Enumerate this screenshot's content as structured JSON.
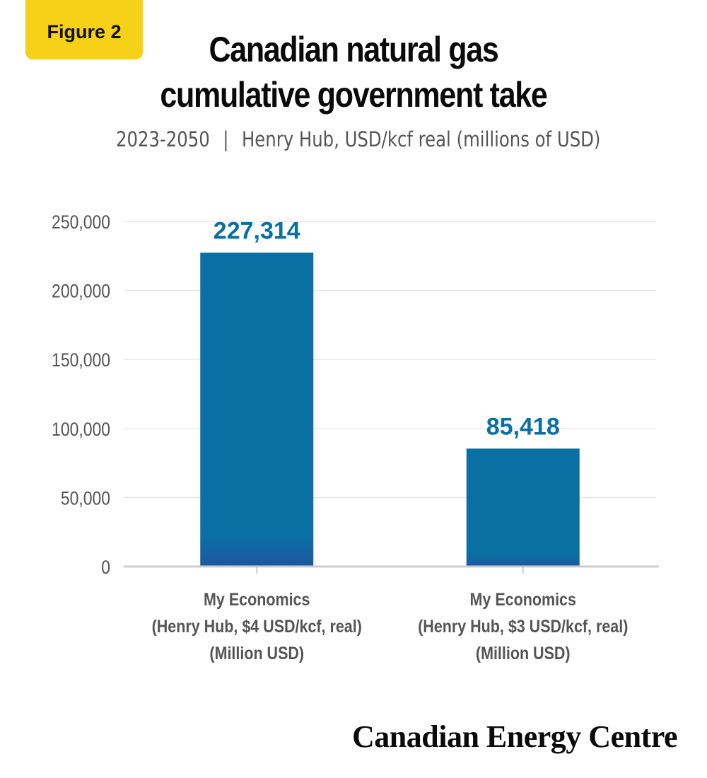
{
  "badge": {
    "label": "Figure 2"
  },
  "header": {
    "title_line1": "Canadian natural gas",
    "title_line2": "cumulative government take",
    "subtitle_period": "2023-2050",
    "subtitle_separator": "|",
    "subtitle_detail": "Henry Hub, USD/kcf real (millions of USD)"
  },
  "chart_data": {
    "type": "bar",
    "title": "Canadian natural gas cumulative government take",
    "subtitle": "2023-2050 | Henry Hub, USD/kcf real (millions of USD)",
    "categories": [
      [
        "My Economics",
        "(Henry Hub, $4 USD/kcf, real)",
        "(Million USD)"
      ],
      [
        "My Economics",
        "(Henry Hub, $3 USD/kcf, real)",
        "(Million USD)"
      ]
    ],
    "values": [
      227314,
      85418
    ],
    "value_labels": [
      "227,314",
      "85,418"
    ],
    "yticks": [
      0,
      50000,
      100000,
      150000,
      200000,
      250000
    ],
    "ytick_labels": [
      "0",
      "50,000",
      "100,000",
      "150,000",
      "200,000",
      "250,000"
    ],
    "ylim": [
      0,
      250000
    ],
    "grid": true,
    "legend": "none",
    "bar_color_top": "#0a6fa3",
    "bar_color_bottom": "#1d57a0",
    "value_label_color": "#0a6fa3",
    "axis_color": "#cccccc",
    "grid_color": "#e3e3e3",
    "tick_label_color": "#555555",
    "category_label_color": "#555555"
  },
  "footer": {
    "brand": "Canadian Energy Centre"
  },
  "colors": {
    "badge_background": "#f7d117",
    "title": "#0a0a0a",
    "subtitle": "#555555"
  }
}
